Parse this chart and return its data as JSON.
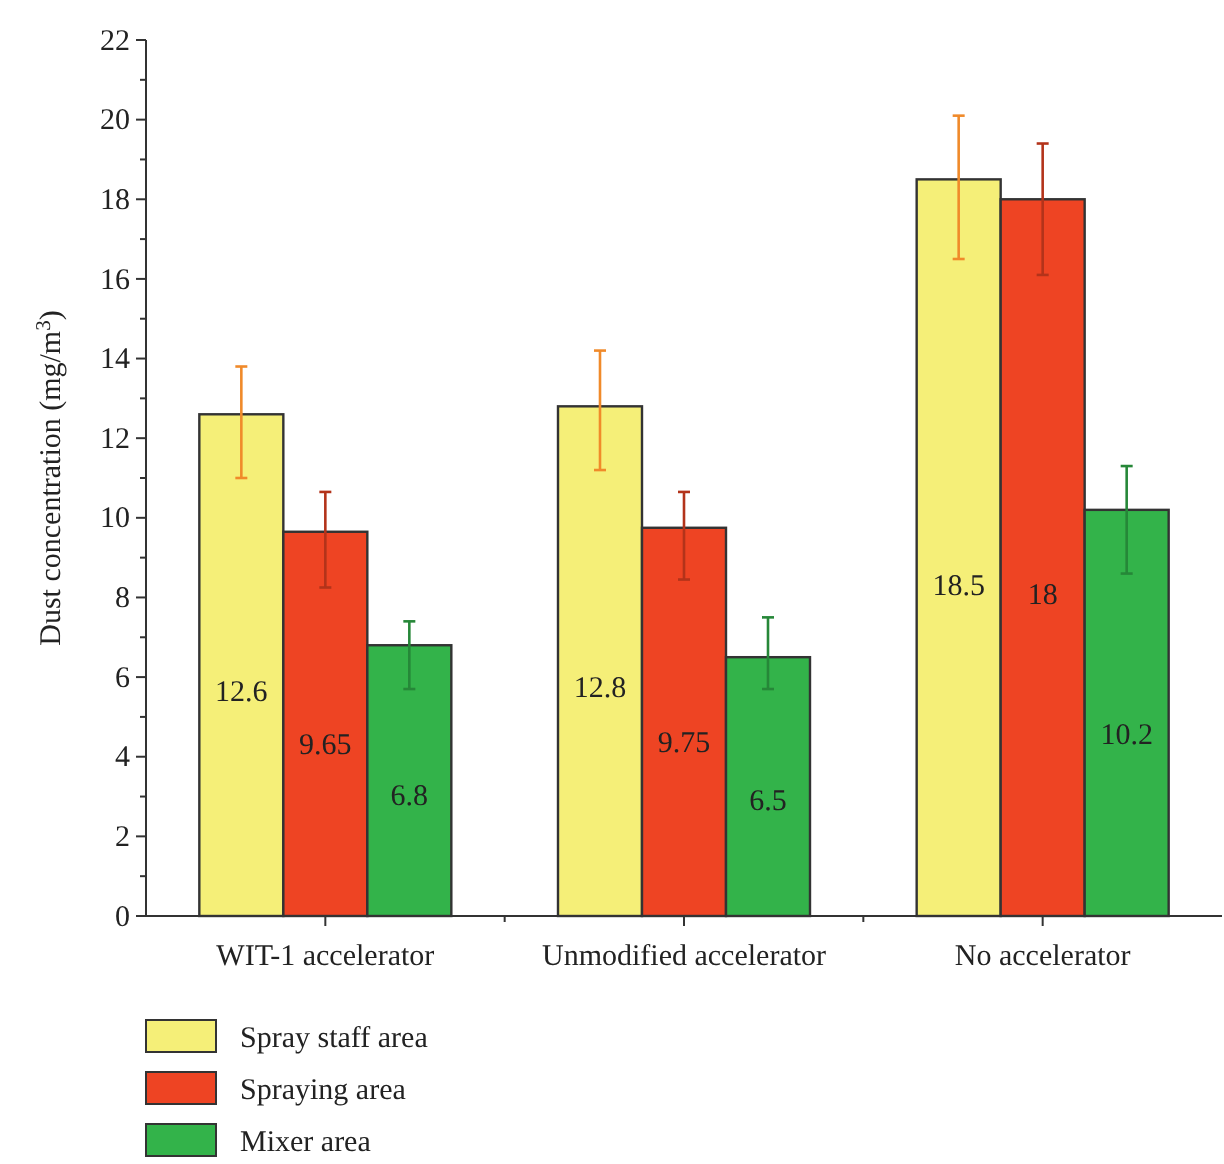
{
  "chart_data": {
    "type": "bar",
    "ylabel": "Dust concentration (mg/m$^{3}$)",
    "categories": [
      "WIT-1 accelerator",
      "Unmodified accelerator",
      "No accelerator"
    ],
    "series": [
      {
        "name": "Spray staff area",
        "color": "#f5ef78",
        "values": [
          12.6,
          12.8,
          18.5
        ],
        "errors": [
          [
            11.0,
            13.8
          ],
          [
            11.2,
            14.2
          ],
          [
            16.5,
            20.1
          ]
        ]
      },
      {
        "name": "Spraying area",
        "color": "#ee4423",
        "values": [
          9.65,
          9.75,
          18
        ],
        "errors": [
          [
            8.25,
            10.65
          ],
          [
            8.45,
            10.65
          ],
          [
            16.1,
            19.4
          ]
        ]
      },
      {
        "name": "Mixer area",
        "color": "#33b34a",
        "values": [
          6.8,
          6.5,
          10.2
        ],
        "errors": [
          [
            5.7,
            7.4
          ],
          [
            5.7,
            7.5
          ],
          [
            8.6,
            11.3
          ]
        ]
      }
    ],
    "ylim": [
      0,
      22
    ],
    "yticks": [
      0,
      2,
      4,
      6,
      8,
      10,
      12,
      14,
      16,
      18,
      20,
      22
    ],
    "data_labels": true,
    "legend": "bottom left",
    "grid": false
  }
}
